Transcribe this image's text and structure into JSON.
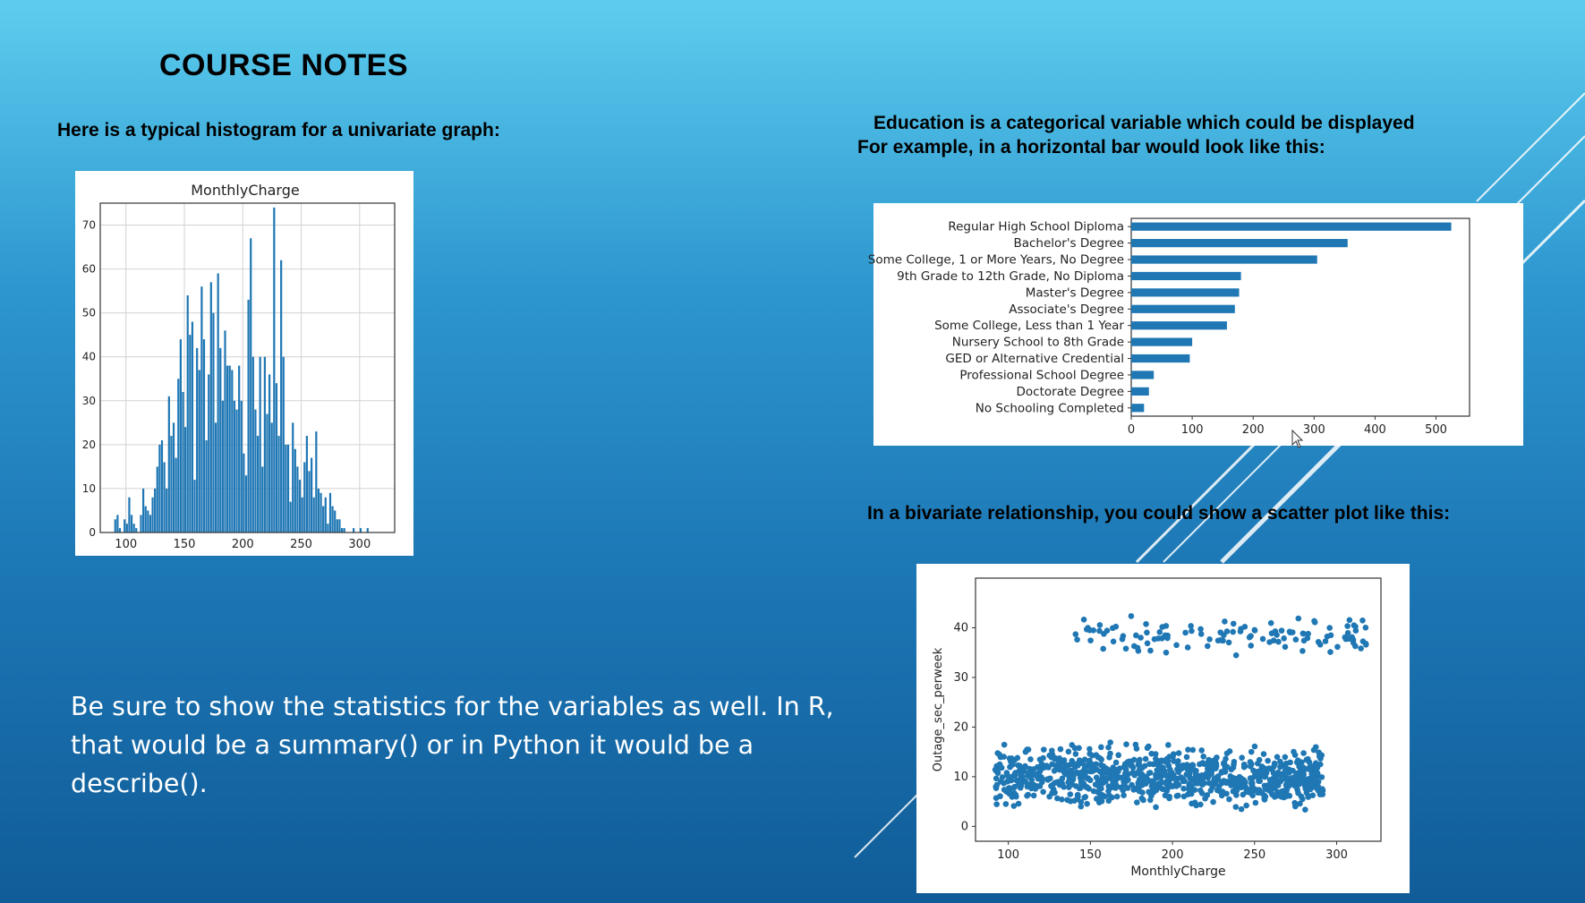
{
  "slide": {
    "title": "COURSE NOTES",
    "hist_caption": "Here is a typical histogram for a univariate graph:",
    "bar_caption_lines": [
      "Education is a categorical variable which could be displayed",
      "For example, in a horizontal bar would look like this:"
    ],
    "scatter_caption": "In a bivariate relationship, you could show a scatter plot like this:",
    "body_lines": [
      "Be sure to show the statistics for the variables as well.  In R,",
      "that would be a summary() or in Python it would be a",
      "describe()."
    ]
  },
  "colors": {
    "bar": "#1f77b4",
    "grid": "#d2d2d2",
    "text": "#222222"
  },
  "chart_data": [
    {
      "type": "bar",
      "title": "MonthlyCharge",
      "xlabel": "",
      "ylabel": "",
      "xlim": [
        78,
        330
      ],
      "ylim": [
        0,
        75
      ],
      "x_ticks": [
        100,
        150,
        200,
        250,
        300
      ],
      "y_ticks": [
        0,
        10,
        20,
        30,
        40,
        50,
        60,
        70
      ],
      "grid": true,
      "bin_width": 2,
      "bins": [
        [
          90,
          3
        ],
        [
          92,
          4
        ],
        [
          94,
          1
        ],
        [
          96,
          0
        ],
        [
          98,
          3
        ],
        [
          100,
          2
        ],
        [
          102,
          8
        ],
        [
          104,
          4
        ],
        [
          106,
          2
        ],
        [
          108,
          1
        ],
        [
          110,
          0
        ],
        [
          112,
          4
        ],
        [
          114,
          10
        ],
        [
          116,
          6
        ],
        [
          118,
          5
        ],
        [
          120,
          4
        ],
        [
          122,
          8
        ],
        [
          124,
          10
        ],
        [
          126,
          15
        ],
        [
          128,
          20
        ],
        [
          130,
          21
        ],
        [
          132,
          16
        ],
        [
          134,
          10
        ],
        [
          136,
          31
        ],
        [
          138,
          22
        ],
        [
          140,
          25
        ],
        [
          142,
          17
        ],
        [
          144,
          35
        ],
        [
          146,
          44
        ],
        [
          148,
          32
        ],
        [
          150,
          24
        ],
        [
          152,
          54
        ],
        [
          154,
          45
        ],
        [
          156,
          48
        ],
        [
          158,
          12
        ],
        [
          160,
          42
        ],
        [
          162,
          37
        ],
        [
          164,
          56
        ],
        [
          166,
          44
        ],
        [
          168,
          21
        ],
        [
          170,
          36
        ],
        [
          172,
          57
        ],
        [
          174,
          50
        ],
        [
          176,
          25
        ],
        [
          178,
          59
        ],
        [
          180,
          42
        ],
        [
          182,
          30
        ],
        [
          184,
          46
        ],
        [
          186,
          38
        ],
        [
          188,
          38
        ],
        [
          190,
          37
        ],
        [
          192,
          30
        ],
        [
          194,
          28
        ],
        [
          196,
          38
        ],
        [
          198,
          30
        ],
        [
          200,
          18
        ],
        [
          202,
          13
        ],
        [
          204,
          53
        ],
        [
          206,
          67
        ],
        [
          208,
          40
        ],
        [
          210,
          28
        ],
        [
          212,
          22
        ],
        [
          214,
          40
        ],
        [
          216,
          15
        ],
        [
          218,
          40
        ],
        [
          220,
          27
        ],
        [
          222,
          36
        ],
        [
          224,
          25
        ],
        [
          226,
          74
        ],
        [
          228,
          34
        ],
        [
          230,
          22
        ],
        [
          232,
          62
        ],
        [
          234,
          40
        ],
        [
          236,
          20
        ],
        [
          238,
          20
        ],
        [
          240,
          7
        ],
        [
          242,
          25
        ],
        [
          244,
          19
        ],
        [
          246,
          15
        ],
        [
          248,
          12
        ],
        [
          250,
          8
        ],
        [
          252,
          16
        ],
        [
          254,
          22
        ],
        [
          256,
          14
        ],
        [
          258,
          17
        ],
        [
          260,
          8
        ],
        [
          262,
          23
        ],
        [
          264,
          10
        ],
        [
          266,
          9
        ],
        [
          268,
          6
        ],
        [
          270,
          8
        ],
        [
          272,
          2
        ],
        [
          274,
          9
        ],
        [
          276,
          6
        ],
        [
          278,
          5
        ],
        [
          280,
          3
        ],
        [
          282,
          3
        ],
        [
          284,
          1
        ],
        [
          286,
          1
        ],
        [
          288,
          0
        ],
        [
          290,
          0
        ],
        [
          292,
          0
        ],
        [
          294,
          1
        ],
        [
          296,
          0
        ],
        [
          298,
          0
        ],
        [
          300,
          1
        ],
        [
          302,
          0
        ],
        [
          304,
          0
        ],
        [
          306,
          1
        ]
      ]
    },
    {
      "type": "bar",
      "orientation": "horizontal",
      "title": "",
      "categories": [
        "Regular High School Diploma",
        "Bachelor's Degree",
        "Some College, 1 or More Years, No Degree",
        "9th Grade to 12th Grade, No Diploma",
        "Master's Degree",
        "Associate's Degree",
        "Some College, Less than 1 Year",
        "Nursery School to 8th Grade",
        "GED or Alternative Credential",
        "Professional School Degree",
        "Doctorate Degree",
        "No Schooling Completed"
      ],
      "values": [
        525,
        355,
        305,
        180,
        177,
        170,
        157,
        100,
        96,
        37,
        29,
        21
      ],
      "xlim": [
        0,
        555
      ],
      "x_ticks": [
        0,
        100,
        200,
        300,
        400,
        500
      ]
    },
    {
      "type": "scatter",
      "title": "",
      "xlabel": "MonthlyCharge",
      "ylabel": "Outage_sec_perweek",
      "xlim": [
        80,
        327
      ],
      "ylim": [
        -3,
        50
      ],
      "x_ticks": [
        100,
        150,
        200,
        250,
        300
      ],
      "y_ticks": [
        0,
        10,
        20,
        30,
        40
      ],
      "clusters": [
        {
          "name": "",
          "x_range": [
            92,
            292
          ],
          "y_center": 10,
          "y_spread": 4.2,
          "count": 900
        },
        {
          "name": "",
          "x_range": [
            140,
            318
          ],
          "y_center": 38.5,
          "y_spread": 3.2,
          "count": 120
        }
      ]
    }
  ]
}
